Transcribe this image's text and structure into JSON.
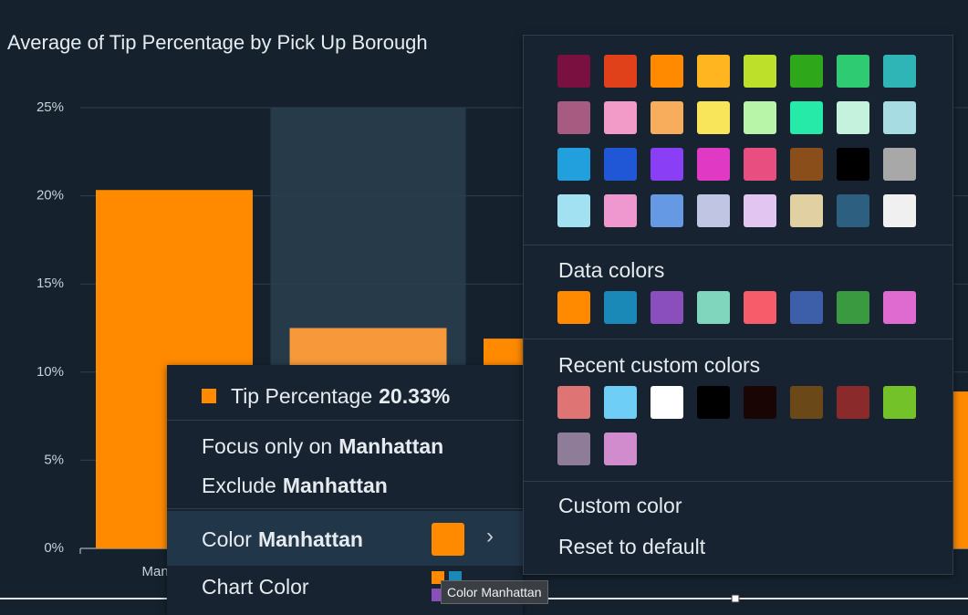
{
  "chart_data": {
    "type": "bar",
    "title": "Average of Tip Percentage by Pick Up Borough",
    "categories": [
      "Manhattan",
      null,
      null,
      null,
      null
    ],
    "values": [
      20.33,
      12.5,
      11.9,
      null,
      8.9
    ],
    "color": "#ff8a00",
    "hover_color": "#f7993a",
    "hover_index": 1,
    "ylim": [
      0,
      25
    ],
    "yticks": [
      {
        "value": 0,
        "label": "0%"
      },
      {
        "value": 5,
        "label": "5%"
      },
      {
        "value": 10,
        "label": "10%"
      },
      {
        "value": 15,
        "label": "15%"
      },
      {
        "value": 20,
        "label": "20%"
      },
      {
        "value": 25,
        "label": "25%"
      }
    ],
    "grid": true
  },
  "context_menu": {
    "tooltip_series": "Tip Percentage",
    "tooltip_value": "20.33%",
    "focus": {
      "text": "Focus only on",
      "bold": "Manhattan"
    },
    "exclude": {
      "text": "Exclude",
      "bold": "Manhattan"
    },
    "color": {
      "text": "Color",
      "bold": "Manhattan",
      "swatch": "#ff8a00"
    },
    "chart_color": "Chart Color",
    "hover_tip": "Color Manhattan"
  },
  "color_menu": {
    "palette": [
      [
        "#7a1040",
        "#e0401a",
        "#ff8a00",
        "#ffb520",
        "#bde12b",
        "#2ea81a",
        "#2fcb73",
        "#2fb5b5"
      ],
      [
        "#a85b80",
        "#f29ac8",
        "#f7ad5c",
        "#f8e55a",
        "#b9f5a8",
        "#26eba8",
        "#c4f2dc",
        "#a8dce3"
      ],
      [
        "#22a0dd",
        "#1f57d6",
        "#8a3ef5",
        "#e03ac4",
        "#e84f80",
        "#8a4e1a",
        "#000000",
        "#a8a8a8"
      ],
      [
        "#a2e1f2",
        "#ef98cf",
        "#6699e3",
        "#c0c5e3",
        "#e2c5f0",
        "#e1d0a2",
        "#2c5f80",
        "#f0f0f0"
      ]
    ],
    "data_colors_label": "Data colors",
    "data_colors": [
      "#ff8a00",
      "#1a89b8",
      "#8a4fbd",
      "#7fd6bd",
      "#f75c6a",
      "#3d5ea8",
      "#3a9a40",
      "#e06bd0"
    ],
    "recent_label": "Recent custom colors",
    "recent": [
      "#de7474",
      "#6fcef6",
      "#ffffff",
      "#000000",
      "#1a0505",
      "#6b4818",
      "#8b2a2a",
      "#74c22a",
      "#8e7c98",
      "#d08ccc"
    ],
    "custom": "Custom color",
    "reset": "Reset to default"
  }
}
